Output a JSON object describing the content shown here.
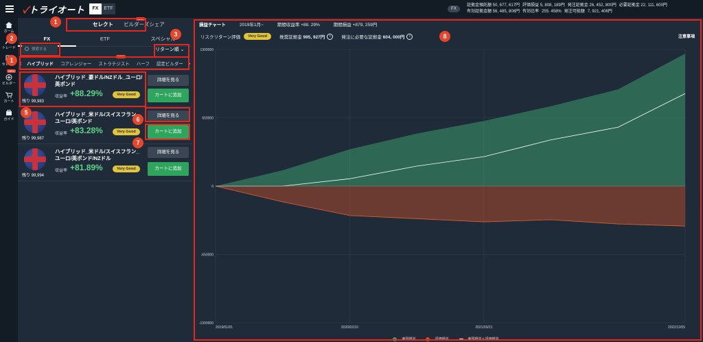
{
  "app": {
    "logo_text": "トライオート",
    "seg": [
      "FX",
      "ETF"
    ],
    "account_seg": "FX"
  },
  "account": {
    "row1": [
      "証拠金預託額 50, 677, 617円",
      "評価損益 5, 808, 189円",
      "発注証拠金 26, 452, 800円",
      "必要証拠金 22, 111, 600円"
    ],
    "row2": [
      "有効証拠金額 56, 485, 806円",
      "有効比率",
      "255. 458%",
      "発注可能額",
      "7, 921, 406円"
    ]
  },
  "nav": [
    {
      "label": "ホーム",
      "icon": "home-icon"
    },
    {
      "label": "トレード",
      "icon": "trade-icon"
    },
    {
      "label": "セレクト",
      "icon": "select-icon"
    },
    {
      "label": "ビルダー",
      "icon": "builder-icon"
    },
    {
      "label": "カート",
      "icon": "cart-icon"
    },
    {
      "label": "ガイド",
      "icon": "guide-icon"
    }
  ],
  "nav_new": "NEW",
  "cart_count": "1",
  "panel": {
    "tabs_top": [
      "セレクト",
      "ビルダーズシェア"
    ],
    "tabs_top_new": "NEW",
    "tabs2": [
      "FX",
      "ETF",
      "スペシャル"
    ],
    "search_placeholder": "検索する",
    "sort_label": "リターン順",
    "cats": [
      "ハイブリッド",
      "コアレンジャー",
      "ストラテジスト",
      "ハーフ",
      "認定ビルダー"
    ],
    "cat_new": "NEW"
  },
  "cards": [
    {
      "name": "ハイブリッド_豪ドル/NZドル_ユーロ/英ポンド",
      "remain": "残り 99,983",
      "return_label": "収益率",
      "return_value": "+88.29%",
      "rating": "Very Good",
      "detail": "詳細を見る",
      "cart": "カートに追加"
    },
    {
      "name": "ハイブリッド_米ドル/スイスフラン_ユーロ/英ポンド",
      "remain": "残り 99,987",
      "return_label": "収益率",
      "return_value": "+83.28%",
      "rating": "Very Good",
      "detail": "詳細を見る",
      "cart": "カートに追加"
    },
    {
      "name": "ハイブリッド_米ドル/スイスフラン_ユーロ/英ポンド/NZドル",
      "remain": "残り 99,994",
      "return_label": "収益率",
      "return_value": "+81.89%",
      "rating": "Very Good",
      "detail": "詳細を見る",
      "cart": "カートに追加"
    }
  ],
  "chart_header": {
    "title": "損益チャート",
    "period": "2019年1月~",
    "return_label": "期間収益率",
    "return_value": "+88. 29%",
    "pl_label": "期間損益",
    "pl_value": "+879, 259円",
    "risk_label": "リスクリターン評価",
    "risk_badge": "Very Good",
    "margin_label": "推奨証拠金",
    "margin_value": "995, 927円",
    "req_label": "発注に必要な証拠金",
    "req_value": "604, 000円",
    "notes": "注意事項"
  },
  "chart_data": {
    "type": "area",
    "title": "",
    "yticks": [
      "1300000",
      "650000",
      "0",
      "-650000",
      "-1300000"
    ],
    "xticks": [
      "2019/01/01",
      "2020/02/10",
      "2021/03/21",
      "2022/12/05"
    ],
    "ylim": [
      -1300000,
      1300000
    ],
    "x": [
      "2019/01/01",
      "2019/07/01",
      "2020/02/10",
      "2020/07/01",
      "2021/03/21",
      "2021/09/01",
      "2022/06/01",
      "2022/12/05"
    ],
    "series": [
      {
        "name": "実現損益",
        "color": "#3a9b6e",
        "values": [
          0,
          150000,
          350000,
          500000,
          620000,
          760000,
          920000,
          1260000
        ]
      },
      {
        "name": "評価損益",
        "color": "#c7502a",
        "values": [
          0,
          -150000,
          -280000,
          -310000,
          -340000,
          -320000,
          -360000,
          -380000
        ]
      },
      {
        "name": "実現損益＋評価損益",
        "color": "#ffffff",
        "values": [
          0,
          0,
          70000,
          190000,
          280000,
          440000,
          560000,
          880000
        ]
      }
    ],
    "grid": true
  },
  "annotations": [
    "1",
    "2",
    "3",
    "1",
    "5",
    "6",
    "7",
    "8"
  ]
}
